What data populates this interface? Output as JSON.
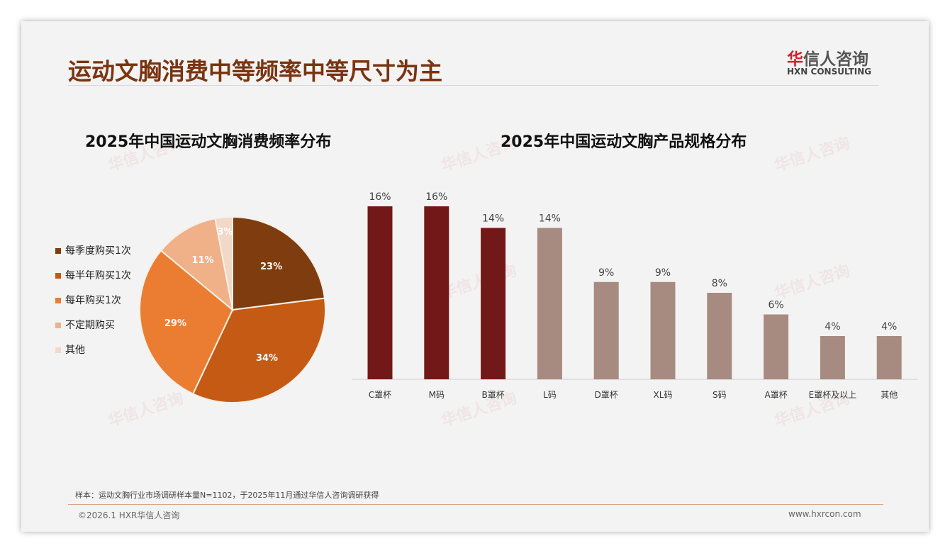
{
  "title": "运动文胸消费中等频率中等尺寸为主",
  "logo": {
    "cn_mark": "华",
    "cn_rest": "信人咨询",
    "en": "HXN CONSULTING"
  },
  "watermark": "华信人咨询",
  "note": "样本：运动文胸行业市场调研样本量N=1102，于2025年11月通过华信人咨询调研获得",
  "footer": {
    "copyright": "©2026.1 HXR华信人咨询",
    "website": "www.hxrcon.com"
  },
  "chart_data": [
    {
      "type": "pie",
      "title": "2025年中国运动文胸消费频率分布",
      "legend_position": "left",
      "categories": [
        "每季度购买1次",
        "每半年购买1次",
        "每年购买1次",
        "不定期购买",
        "其他"
      ],
      "values": [
        23,
        34,
        29,
        11,
        3
      ],
      "labels": [
        "23%",
        "34%",
        "29%",
        "11%",
        "3%"
      ],
      "colors": [
        "#7f3c0e",
        "#c45a14",
        "#eb7d32",
        "#f0b088",
        "#f2d8c6"
      ]
    },
    {
      "type": "bar",
      "title": "2025年中国运动文胸产品规格分布",
      "categories": [
        "C罩杯",
        "M码",
        "B罩杯",
        "L码",
        "D罩杯",
        "XL码",
        "S码",
        "A罩杯",
        "E罩杯及以上",
        "其他"
      ],
      "values": [
        16,
        16,
        14,
        14,
        9,
        9,
        8,
        6,
        4,
        4
      ],
      "labels": [
        "16%",
        "16%",
        "14%",
        "14%",
        "9%",
        "9%",
        "8%",
        "6%",
        "4%",
        "4%"
      ],
      "colors": [
        "#731818",
        "#731818",
        "#731818",
        "#a88b80",
        "#a88b80",
        "#a88b80",
        "#a88b80",
        "#a88b80",
        "#a88b80",
        "#a88b80"
      ],
      "ylim": [
        0,
        16
      ]
    }
  ]
}
